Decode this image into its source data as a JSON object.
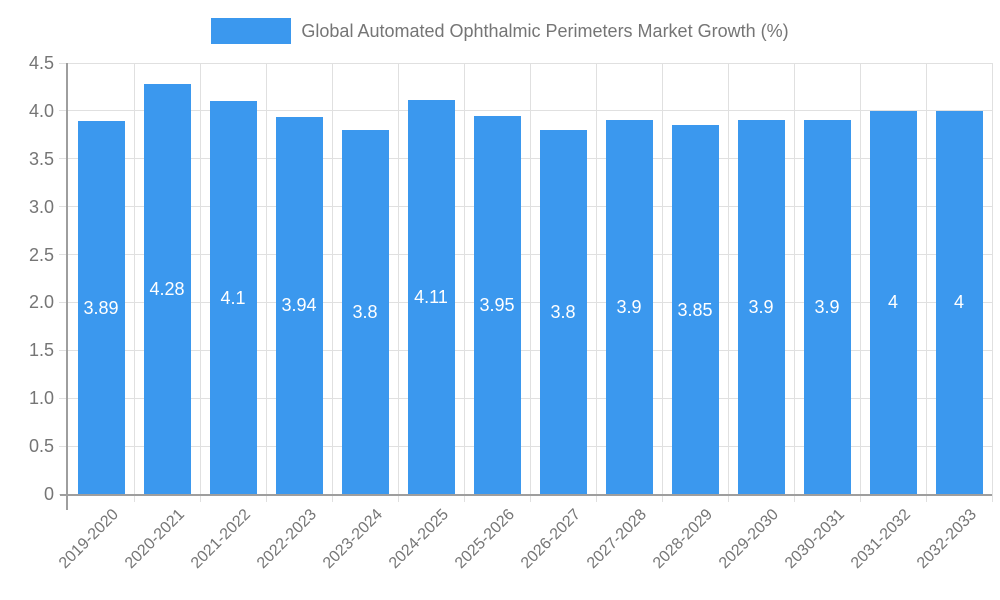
{
  "chart_data": {
    "type": "bar",
    "title": "Global Automated Ophthalmic Perimeters Market Growth (%)",
    "categories": [
      "2019-2020",
      "2020-2021",
      "2021-2022",
      "2022-2023",
      "2023-2024",
      "2024-2025",
      "2025-2026",
      "2026-2027",
      "2027-2028",
      "2028-2029",
      "2029-2030",
      "2030-2031",
      "2031-2032",
      "2032-2033"
    ],
    "values": [
      3.89,
      4.28,
      4.1,
      3.94,
      3.8,
      4.11,
      3.95,
      3.8,
      3.9,
      3.85,
      3.9,
      3.9,
      4,
      4
    ],
    "value_labels": [
      "3.89",
      "4.28",
      "4.1",
      "3.94",
      "3.8",
      "4.11",
      "3.95",
      "3.8",
      "3.9",
      "3.85",
      "3.9",
      "3.9",
      "4",
      "4"
    ],
    "ytick_labels": [
      "0",
      "0.5",
      "1.0",
      "1.5",
      "2.0",
      "2.5",
      "3.0",
      "3.5",
      "4.0",
      "4.5"
    ],
    "ytick_step": 0.5,
    "ylim": [
      0,
      4.5
    ],
    "grid": true,
    "legend_position": "top",
    "colors": {
      "bar": "#3B98EE",
      "grid": "#E0E0E0",
      "axis": "#9E9E9E",
      "text": "#757575",
      "value_label": "#FFFFFF",
      "background": "#FFFFFF"
    }
  }
}
